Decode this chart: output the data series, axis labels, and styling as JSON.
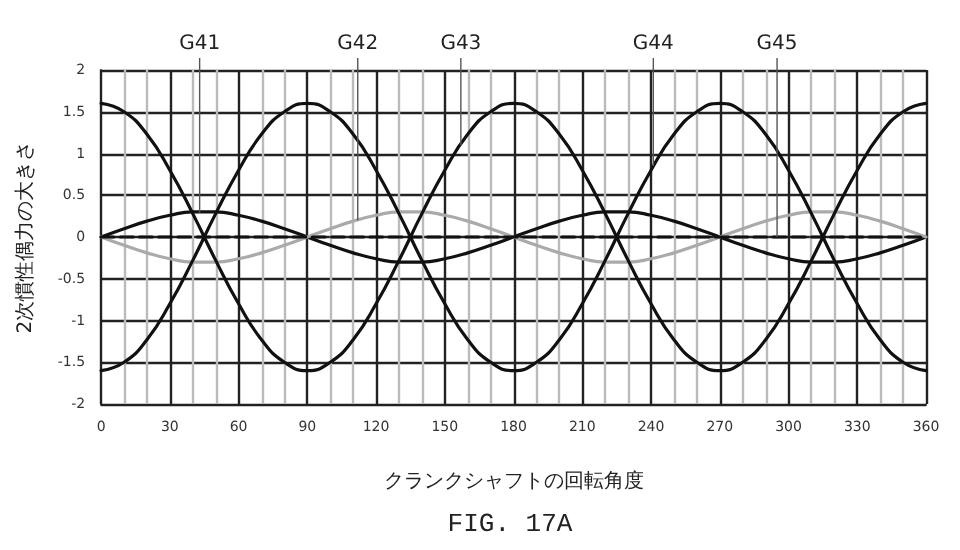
{
  "chart_data": {
    "type": "line",
    "xlabel": "クランクシャフトの回転角度",
    "ylabel": "2次慣性偶力の大きさ",
    "x": [
      0,
      10,
      20,
      30,
      40,
      50,
      60,
      70,
      80,
      90,
      100,
      110,
      120,
      130,
      140,
      150,
      160,
      170,
      180,
      190,
      200,
      210,
      220,
      230,
      240,
      250,
      260,
      270,
      280,
      290,
      300,
      310,
      320,
      330,
      340,
      350,
      360
    ],
    "series": [
      {
        "color": "#111111",
        "values": [
          0,
          0.1,
          0.19,
          0.26,
          0.3,
          0.3,
          0.26,
          0.19,
          0.1,
          0,
          -0.1,
          -0.19,
          -0.26,
          -0.3,
          -0.3,
          -0.26,
          -0.19,
          -0.1,
          0,
          0.1,
          0.19,
          0.26,
          0.3,
          0.3,
          0.26,
          0.19,
          0.1,
          0,
          -0.1,
          -0.19,
          -0.26,
          -0.3,
          -0.3,
          -0.26,
          -0.19,
          -0.1,
          0
        ]
      },
      {
        "color": "#aaaaaa",
        "values": [
          0,
          -0.1,
          -0.19,
          -0.26,
          -0.3,
          -0.3,
          -0.26,
          -0.19,
          -0.1,
          0,
          0.1,
          0.19,
          0.26,
          0.3,
          0.3,
          0.26,
          0.19,
          0.1,
          0,
          -0.1,
          -0.19,
          -0.26,
          -0.3,
          -0.3,
          -0.26,
          -0.19,
          -0.1,
          0,
          0.1,
          0.19,
          0.26,
          0.3,
          0.3,
          0.26,
          0.19,
          0.1,
          0
        ]
      },
      {
        "color": "#111111",
        "values": [
          1.6,
          1.5,
          1.23,
          0.8,
          0.28,
          -0.28,
          -0.8,
          -1.23,
          -1.5,
          -1.6,
          -1.5,
          -1.23,
          -0.8,
          -0.28,
          0.28,
          0.8,
          1.23,
          1.5,
          1.6,
          1.5,
          1.23,
          0.8,
          0.28,
          -0.28,
          -0.8,
          -1.23,
          -1.5,
          -1.6,
          -1.5,
          -1.23,
          -0.8,
          -0.28,
          0.28,
          0.8,
          1.23,
          1.5,
          1.6
        ]
      },
      {
        "color": "#111111",
        "values": [
          -1.6,
          -1.5,
          -1.23,
          -0.8,
          -0.28,
          0.28,
          0.8,
          1.23,
          1.5,
          1.6,
          1.5,
          1.23,
          0.8,
          0.28,
          -0.28,
          -0.8,
          -1.23,
          -1.5,
          -1.6,
          -1.5,
          -1.23,
          -0.8,
          -0.28,
          0.28,
          0.8,
          1.23,
          1.5,
          1.6,
          1.5,
          1.23,
          0.8,
          0.28,
          -0.28,
          -0.8,
          -1.23,
          -1.5,
          -1.6
        ]
      },
      {
        "color": "#111111",
        "line_style": "dashed",
        "values": [
          0,
          0,
          0,
          0,
          0,
          0,
          0,
          0,
          0,
          0,
          0,
          0,
          0,
          0,
          0,
          0,
          0,
          0,
          0,
          0,
          0,
          0,
          0,
          0,
          0,
          0,
          0,
          0,
          0,
          0,
          0,
          0,
          0,
          0,
          0,
          0,
          0
        ]
      }
    ],
    "xlim": [
      0,
      360
    ],
    "xticks": [
      0,
      30,
      60,
      90,
      120,
      150,
      180,
      210,
      240,
      270,
      300,
      330,
      360
    ],
    "ylim": [
      -2,
      2
    ],
    "yticks": [
      -2,
      -1.5,
      -1,
      -0.5,
      0,
      0.5,
      1,
      1.5,
      2
    ],
    "grid": true,
    "marker": "none",
    "line_style": "solid",
    "annotations": [
      {
        "text": "G41",
        "x": 43,
        "y": 0.29
      },
      {
        "text": "G42",
        "x": 112,
        "y": 0.2
      },
      {
        "text": "G43",
        "x": 157,
        "y": 1.1
      },
      {
        "text": "G44",
        "x": 241,
        "y": 0.85
      },
      {
        "text": "G45",
        "x": 295,
        "y": 0
      },
      "FIG. 17A"
    ]
  }
}
